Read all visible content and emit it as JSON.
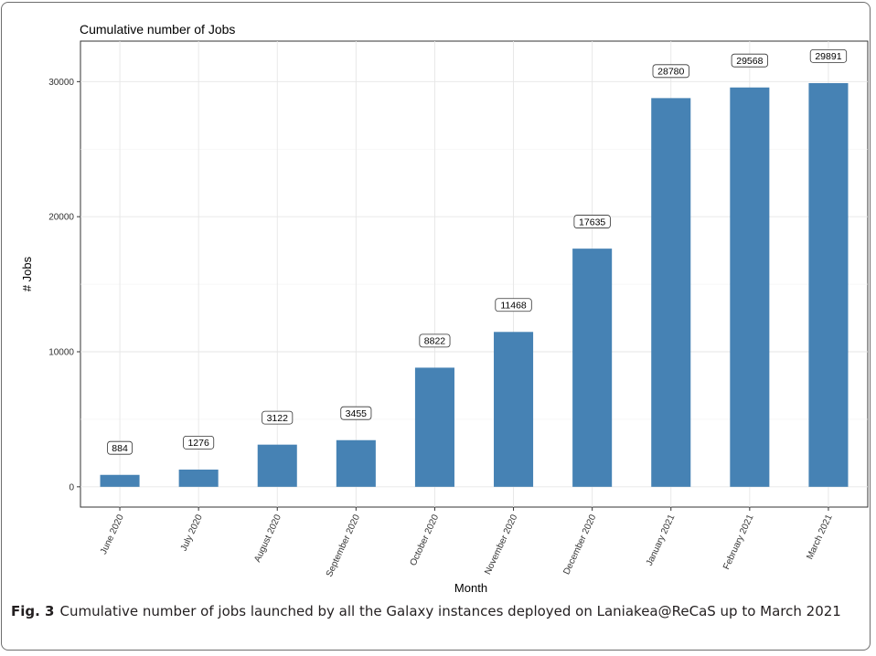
{
  "chart_data": {
    "type": "bar",
    "title": "Cumulative number of Jobs",
    "xlabel": "Month",
    "ylabel": "# Jobs",
    "categories": [
      "June 2020",
      "July 2020",
      "August 2020",
      "September 2020",
      "October 2020",
      "November 2020",
      "December 2020",
      "January 2021",
      "February 2021",
      "March 2021"
    ],
    "values": [
      884,
      1276,
      3122,
      3455,
      8822,
      11468,
      17635,
      28780,
      29568,
      29891
    ],
    "ylim": [
      -1500,
      33000
    ],
    "yticks": [
      0,
      10000,
      20000,
      30000
    ],
    "grid": true,
    "legend": "none",
    "bar_color": "#4682B4"
  },
  "caption": {
    "label": "Fig. 3",
    "text": "Cumulative number of jobs launched by all the Galaxy instances deployed on Laniakea@ReCaS up to March 2021"
  }
}
